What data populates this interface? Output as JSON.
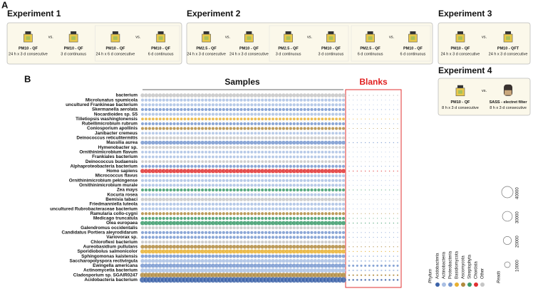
{
  "panel_a": {
    "label": "A",
    "vs_label": "vs.",
    "experiments": [
      {
        "title": "Experiment 1",
        "comparisons": [
          {
            "left": {
              "label": "PM10 - QF",
              "duration": "24 h x 3 d consecutive"
            },
            "right": {
              "label": "PM10 - QF",
              "duration": "3 d continuous"
            }
          },
          {
            "left": {
              "label": "PM10 - QF",
              "duration": "24 h x 6 d consecutive"
            },
            "right": {
              "label": "PM10 - QF",
              "duration": "6 d continuous"
            }
          }
        ]
      },
      {
        "title": "Experiment 2",
        "comparisons": [
          {
            "left": {
              "label": "PM2.5 - QF",
              "duration": "24 h x 3 d consecutive"
            },
            "right": {
              "label": "PM10 - QF",
              "duration": "24 h x 3 d consecutive"
            }
          },
          {
            "left": {
              "label": "PM2.5 - QF",
              "duration": "3 d continuous"
            },
            "right": {
              "label": "PM10 - QF",
              "duration": "3 d continuous"
            }
          },
          {
            "left": {
              "label": "PM2.5 - QF",
              "duration": "6 d continuous"
            },
            "right": {
              "label": "PM10 - QF",
              "duration": "6 d continuous"
            }
          }
        ]
      },
      {
        "title": "Experiment 3",
        "comparisons": [
          {
            "left": {
              "label": "PM10 - QF",
              "duration": "24 h x 3 d consecutive"
            },
            "right": {
              "label": "PM10 - QFT",
              "duration": "24 h x 3 d consecutive"
            }
          }
        ]
      },
      {
        "title": "Experiment 4",
        "comparisons": [
          {
            "left": {
              "label": "PM10 - QF",
              "duration": "8 h x 3 d consecutive"
            },
            "right": {
              "label": "SASS - electret filter",
              "duration": "8 h x 3 d consecutive"
            }
          }
        ]
      }
    ]
  },
  "panel_b": {
    "label": "B",
    "samples_label": "Samples",
    "blanks_label": "Blanks",
    "phylum_label": "Phylum",
    "reads_label": "Reads",
    "phyla": [
      {
        "name": "Acidobacteria",
        "color": "#3b62a8"
      },
      {
        "name": "Actinobacteria",
        "color": "#a9bfe3"
      },
      {
        "name": "Proteobacteria",
        "color": "#7596cf"
      },
      {
        "name": "Basidiomycota",
        "color": "#e8b030"
      },
      {
        "name": "Ascomycota",
        "color": "#b08a3e"
      },
      {
        "name": "Streptophyta",
        "color": "#3a9a6a"
      },
      {
        "name": "Chordata",
        "color": "#e03030"
      },
      {
        "name": "Other",
        "color": "#c6c6c6"
      }
    ],
    "reads_ticks": [
      10000,
      20000,
      30000,
      40000
    ],
    "rows": [
      {
        "name": "bacterium",
        "phylum": 7,
        "samples": 5000,
        "blanks": 400
      },
      {
        "name": "Microlunatus spumicola",
        "phylum": 1,
        "samples": 3000,
        "blanks": 200
      },
      {
        "name": "uncultured Frankineae bacterium",
        "phylum": 1,
        "samples": 3000,
        "blanks": 200
      },
      {
        "name": "Skermanella aerolata",
        "phylum": 2,
        "samples": 3000,
        "blanks": 200
      },
      {
        "name": "Nocardioides sp. S5",
        "phylum": 1,
        "samples": 3000,
        "blanks": 200
      },
      {
        "name": "Tilletiopsis washingtonensis",
        "phylum": 3,
        "samples": 2500,
        "blanks": 200
      },
      {
        "name": "Rubellimicrobium rubrum",
        "phylum": 2,
        "samples": 3000,
        "blanks": 200
      },
      {
        "name": "Coniosporium apollinis",
        "phylum": 4,
        "samples": 3000,
        "blanks": 200
      },
      {
        "name": "Janibacter cremeus",
        "phylum": 1,
        "samples": 2500,
        "blanks": 200
      },
      {
        "name": "Deinococcus reticulitermitis",
        "phylum": 7,
        "samples": 3000,
        "blanks": 200
      },
      {
        "name": "Massilia aurea",
        "phylum": 2,
        "samples": 5000,
        "blanks": 300
      },
      {
        "name": "Hymenobacter sp.",
        "phylum": 7,
        "samples": 3000,
        "blanks": 200
      },
      {
        "name": "Ornithinimicrobium flavum",
        "phylum": 1,
        "samples": 2500,
        "blanks": 200
      },
      {
        "name": "Frankiales bacterium",
        "phylum": 1,
        "samples": 2500,
        "blanks": 200
      },
      {
        "name": "Deinococcus budaensis",
        "phylum": 7,
        "samples": 2500,
        "blanks": 200
      },
      {
        "name": "Alphaproteobacteria bacterium",
        "phylum": 2,
        "samples": 3000,
        "blanks": 200
      },
      {
        "name": "Homo sapiens",
        "phylum": 6,
        "samples": 6000,
        "blanks": 300
      },
      {
        "name": "Micrococcus flavus",
        "phylum": 1,
        "samples": 3000,
        "blanks": 200
      },
      {
        "name": "Ornithinimicrobium pekingense",
        "phylum": 1,
        "samples": 3000,
        "blanks": 200
      },
      {
        "name": "Ornithinimicrobium murale",
        "phylum": 1,
        "samples": 3000,
        "blanks": 200
      },
      {
        "name": "Zea mays",
        "phylum": 5,
        "samples": 3000,
        "blanks": 200
      },
      {
        "name": "Kocuria rosea",
        "phylum": 1,
        "samples": 3000,
        "blanks": 200
      },
      {
        "name": "Bemisia tabaci",
        "phylum": 7,
        "samples": 4000,
        "blanks": 200
      },
      {
        "name": "Friedmanniella luteola",
        "phylum": 1,
        "samples": 3000,
        "blanks": 200
      },
      {
        "name": "uncultured Rubrobacteraceae bacterium",
        "phylum": 1,
        "samples": 3000,
        "blanks": 200
      },
      {
        "name": "Ramularia collo-cygni",
        "phylum": 4,
        "samples": 3000,
        "blanks": 200
      },
      {
        "name": "Medicago truncatula",
        "phylum": 5,
        "samples": 3000,
        "blanks": 200
      },
      {
        "name": "Olea europaea",
        "phylum": 5,
        "samples": 6000,
        "blanks": 300
      },
      {
        "name": "Galendromus occidentalis",
        "phylum": 7,
        "samples": 3000,
        "blanks": 200
      },
      {
        "name": "Candidatus Portiera aleyrodidarum",
        "phylum": 2,
        "samples": 3000,
        "blanks": 200
      },
      {
        "name": "Variovorax sp.",
        "phylum": 2,
        "samples": 3000,
        "blanks": 200
      },
      {
        "name": "Chloroflexi bacterium",
        "phylum": 7,
        "samples": 3000,
        "blanks": 200
      },
      {
        "name": "Aureobasidium pullulans",
        "phylum": 4,
        "samples": 5000,
        "blanks": 300
      },
      {
        "name": "Sporidiobolus salmonicolor",
        "phylum": 3,
        "samples": 6000,
        "blanks": 300
      },
      {
        "name": "Sphingomonas kaistensis",
        "phylum": 2,
        "samples": 4000,
        "blanks": 300
      },
      {
        "name": "Saccharopolyspora rectivirgula",
        "phylum": 1,
        "samples": 5000,
        "blanks": 800
      },
      {
        "name": "Ewingella americana",
        "phylum": 2,
        "samples": 6000,
        "blanks": 1500
      },
      {
        "name": "Actinomycetia bacterium",
        "phylum": 1,
        "samples": 6000,
        "blanks": 800
      },
      {
        "name": "Cladosporium sp. SGAIR0247",
        "phylum": 4,
        "samples": 8000,
        "blanks": 800
      },
      {
        "name": "Acidobacteria bacterium",
        "phylum": 0,
        "samples": 10000,
        "blanks": 1000
      }
    ]
  }
}
